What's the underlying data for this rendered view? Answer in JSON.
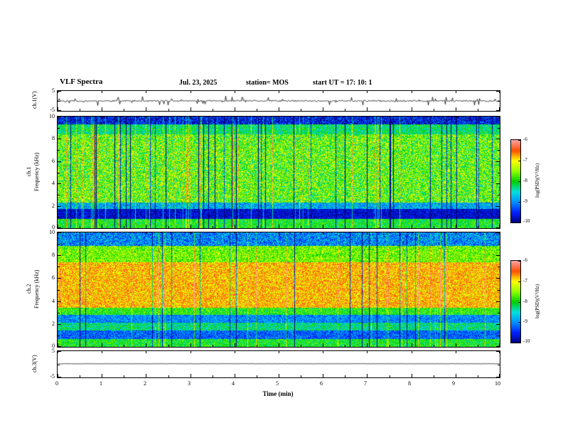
{
  "header": {
    "title": "VLF Spectra",
    "date": "Jul. 23, 2025",
    "station": "station= MOS",
    "start_ut": "start UT =  17: 10: 1"
  },
  "x_axis": {
    "label": "Time (min)",
    "range": [
      0,
      10
    ],
    "ticks": [
      0,
      1,
      2,
      3,
      4,
      5,
      6,
      7,
      8,
      9,
      10
    ],
    "minor_ticks": [
      0.5,
      1.5,
      2.5,
      3.5,
      4.5,
      5.5,
      6.5,
      7.5,
      8.5,
      9.5
    ]
  },
  "colorbar": {
    "label": "log(PSD)(V²/Hz)",
    "range": [
      -10,
      -6
    ],
    "ticks": [
      -6,
      -7,
      -8,
      -9,
      -10
    ],
    "colormap": [
      "#000080",
      "#0020ff",
      "#0090ff",
      "#00e0e0",
      "#00d000",
      "#90ff00",
      "#ffff00",
      "#ff5000",
      "#ffa0a0"
    ]
  },
  "chart_data": [
    {
      "type": "line",
      "name": "ch1 voltage waveform",
      "ylabel": "ch.1(V)",
      "ylim": [
        -5,
        5
      ],
      "yticks": [
        5,
        -5
      ],
      "yminor": [
        0
      ],
      "baseline": 0,
      "noise_amplitude": 0.35,
      "spike_prob": 0.1,
      "spike_height": 2.2,
      "seed": 11
    },
    {
      "type": "heatmap",
      "name": "ch1 spectrogram",
      "ylabel_line1": "ch.1",
      "ylabel_line2": "Frequency (kHz)",
      "ylim": [
        0,
        10
      ],
      "yticks": [
        0,
        2,
        4,
        6,
        8,
        10
      ],
      "yminor": [
        1,
        3,
        5,
        7,
        9
      ],
      "zlim": [
        -10,
        -6
      ],
      "bands": [
        {
          "f0": 0,
          "f1": 0.8,
          "level": -8.0,
          "sigma": 0.5
        },
        {
          "f0": 0.8,
          "f1": 1.7,
          "level": -9.7,
          "sigma": 0.35
        },
        {
          "f0": 1.7,
          "f1": 2.3,
          "level": -8.8,
          "sigma": 0.6
        },
        {
          "f0": 2.3,
          "f1": 8.4,
          "level": -7.7,
          "sigma": 0.85
        },
        {
          "f0": 8.4,
          "f1": 9.3,
          "level": -8.2,
          "sigma": 0.6
        },
        {
          "f0": 9.3,
          "f1": 10,
          "level": -9.6,
          "sigma": 0.7
        }
      ],
      "dark_streak_prob": 0.045,
      "bright_streak_prob": 0.04,
      "seed": 23
    },
    {
      "type": "heatmap",
      "name": "ch2 spectrogram",
      "ylabel_line1": "ch.2",
      "ylabel_line2": "Frequency (kHz)",
      "ylim": [
        0,
        10
      ],
      "yticks": [
        0,
        2,
        4,
        6,
        8,
        10
      ],
      "yminor": [
        1,
        3,
        5,
        7,
        9
      ],
      "zlim": [
        -10,
        -6
      ],
      "bands": [
        {
          "f0": 0,
          "f1": 0.7,
          "level": -8.0,
          "sigma": 0.5
        },
        {
          "f0": 0.7,
          "f1": 1.4,
          "level": -9.2,
          "sigma": 0.5
        },
        {
          "f0": 1.4,
          "f1": 2.1,
          "level": -8.3,
          "sigma": 0.6
        },
        {
          "f0": 2.1,
          "f1": 2.8,
          "level": -9.0,
          "sigma": 0.5
        },
        {
          "f0": 2.8,
          "f1": 3.4,
          "level": -7.9,
          "sigma": 0.5
        },
        {
          "f0": 3.4,
          "f1": 7.4,
          "level": -6.8,
          "sigma": 0.55
        },
        {
          "f0": 7.4,
          "f1": 8.8,
          "level": -7.6,
          "sigma": 0.6
        },
        {
          "f0": 8.8,
          "f1": 10,
          "level": -9.0,
          "sigma": 0.7
        }
      ],
      "dark_streak_prob": 0.03,
      "bright_streak_prob": 0.03,
      "seed": 37
    },
    {
      "type": "line",
      "name": "ch3 voltage waveform",
      "ylabel": "ch.3(V)",
      "ylim": [
        -5,
        5
      ],
      "yticks": [
        5,
        -5
      ],
      "yminor": [
        0
      ],
      "baseline": 0.2,
      "noise_amplitude": 0.06,
      "spike_prob": 0,
      "spike_height": 0,
      "seed": 5
    }
  ]
}
